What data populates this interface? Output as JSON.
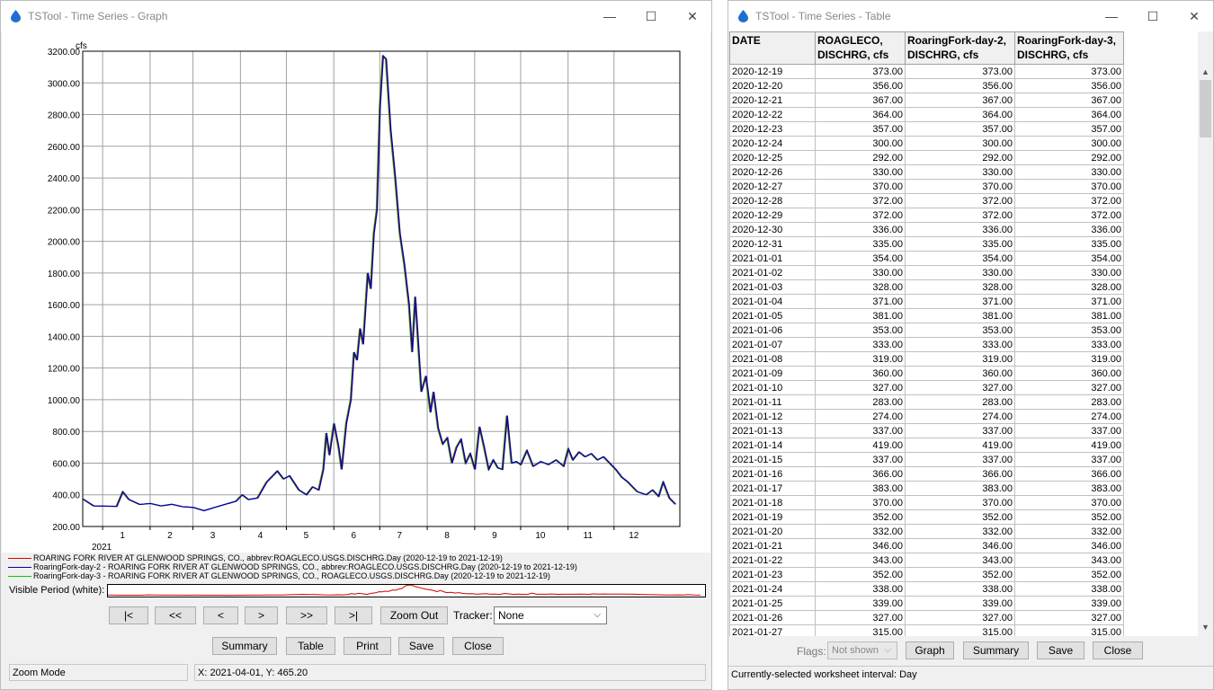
{
  "graph_window": {
    "title": "TSTool - Time Series - Graph",
    "controls": {
      "minimize": "—",
      "maximize": "☐",
      "close": "✕"
    },
    "chart": {
      "units_label": "cfs",
      "y_ticks": [
        "3200.00",
        "3000.00",
        "2800.00",
        "2600.00",
        "2400.00",
        "2200.00",
        "2000.00",
        "1800.00",
        "1600.00",
        "1400.00",
        "1200.00",
        "1000.00",
        "800.00",
        "600.00",
        "400.00",
        "200.00"
      ],
      "x_ticks": [
        "1",
        "2",
        "3",
        "4",
        "5",
        "6",
        "7",
        "8",
        "9",
        "10",
        "11",
        "12"
      ],
      "year_label": "2021"
    },
    "legend": [
      {
        "text": "ROARING FORK RIVER AT GLENWOOD SPRINGS, CO., abbrev:ROAGLECO.USGS.DISCHRG.Day (2020-12-19 to 2021-12-19)",
        "color": "#e00000"
      },
      {
        "text": "RoaringFork-day-2 - ROARING FORK RIVER AT GLENWOOD SPRINGS, CO., abbrev:ROAGLECO.USGS.DISCHRG.Day (2020-12-19 to 2021-12-19)",
        "color": "#0000b0"
      },
      {
        "text": "RoaringFork-day-3 - ROARING FORK RIVER AT GLENWOOD SPRINGS, CO., ROAGLECO.USGS.DISCHRG.Day (2020-12-19 to 2021-12-19)",
        "color": "#00cc00"
      }
    ],
    "visible_period_label": "Visible Period (white):",
    "nav_buttons": [
      "|<",
      "<<",
      "<",
      ">",
      ">>",
      ">|"
    ],
    "zoom_out": "Zoom Out",
    "tracker_label": "Tracker:",
    "tracker_value": "None",
    "action_buttons": [
      "Summary",
      "Table",
      "Print",
      "Save",
      "Close"
    ],
    "status_mode": "Zoom Mode",
    "status_coords": "X:  2021-04-01,  Y:  465.20"
  },
  "table_window": {
    "title": "TSTool - Time Series - Table",
    "controls": {
      "minimize": "—",
      "maximize": "☐",
      "close": "✕"
    },
    "columns": [
      {
        "line1": "DATE",
        "line2": ""
      },
      {
        "line1": "ROAGLECO,",
        "line2": "DISCHRG, cfs"
      },
      {
        "line1": "RoaringFork-day-2,",
        "line2": "DISCHRG, cfs"
      },
      {
        "line1": "RoaringFork-day-3,",
        "line2": "DISCHRG, cfs"
      }
    ],
    "rows": [
      [
        "2020-12-19",
        "373.00",
        "373.00",
        "373.00"
      ],
      [
        "2020-12-20",
        "356.00",
        "356.00",
        "356.00"
      ],
      [
        "2020-12-21",
        "367.00",
        "367.00",
        "367.00"
      ],
      [
        "2020-12-22",
        "364.00",
        "364.00",
        "364.00"
      ],
      [
        "2020-12-23",
        "357.00",
        "357.00",
        "357.00"
      ],
      [
        "2020-12-24",
        "300.00",
        "300.00",
        "300.00"
      ],
      [
        "2020-12-25",
        "292.00",
        "292.00",
        "292.00"
      ],
      [
        "2020-12-26",
        "330.00",
        "330.00",
        "330.00"
      ],
      [
        "2020-12-27",
        "370.00",
        "370.00",
        "370.00"
      ],
      [
        "2020-12-28",
        "372.00",
        "372.00",
        "372.00"
      ],
      [
        "2020-12-29",
        "372.00",
        "372.00",
        "372.00"
      ],
      [
        "2020-12-30",
        "336.00",
        "336.00",
        "336.00"
      ],
      [
        "2020-12-31",
        "335.00",
        "335.00",
        "335.00"
      ],
      [
        "2021-01-01",
        "354.00",
        "354.00",
        "354.00"
      ],
      [
        "2021-01-02",
        "330.00",
        "330.00",
        "330.00"
      ],
      [
        "2021-01-03",
        "328.00",
        "328.00",
        "328.00"
      ],
      [
        "2021-01-04",
        "371.00",
        "371.00",
        "371.00"
      ],
      [
        "2021-01-05",
        "381.00",
        "381.00",
        "381.00"
      ],
      [
        "2021-01-06",
        "353.00",
        "353.00",
        "353.00"
      ],
      [
        "2021-01-07",
        "333.00",
        "333.00",
        "333.00"
      ],
      [
        "2021-01-08",
        "319.00",
        "319.00",
        "319.00"
      ],
      [
        "2021-01-09",
        "360.00",
        "360.00",
        "360.00"
      ],
      [
        "2021-01-10",
        "327.00",
        "327.00",
        "327.00"
      ],
      [
        "2021-01-11",
        "283.00",
        "283.00",
        "283.00"
      ],
      [
        "2021-01-12",
        "274.00",
        "274.00",
        "274.00"
      ],
      [
        "2021-01-13",
        "337.00",
        "337.00",
        "337.00"
      ],
      [
        "2021-01-14",
        "419.00",
        "419.00",
        "419.00"
      ],
      [
        "2021-01-15",
        "337.00",
        "337.00",
        "337.00"
      ],
      [
        "2021-01-16",
        "366.00",
        "366.00",
        "366.00"
      ],
      [
        "2021-01-17",
        "383.00",
        "383.00",
        "383.00"
      ],
      [
        "2021-01-18",
        "370.00",
        "370.00",
        "370.00"
      ],
      [
        "2021-01-19",
        "352.00",
        "352.00",
        "352.00"
      ],
      [
        "2021-01-20",
        "332.00",
        "332.00",
        "332.00"
      ],
      [
        "2021-01-21",
        "346.00",
        "346.00",
        "346.00"
      ],
      [
        "2021-01-22",
        "343.00",
        "343.00",
        "343.00"
      ],
      [
        "2021-01-23",
        "352.00",
        "352.00",
        "352.00"
      ],
      [
        "2021-01-24",
        "338.00",
        "338.00",
        "338.00"
      ],
      [
        "2021-01-25",
        "339.00",
        "339.00",
        "339.00"
      ],
      [
        "2021-01-26",
        "327.00",
        "327.00",
        "327.00"
      ],
      [
        "2021-01-27",
        "315.00",
        "315.00",
        "315.00"
      ]
    ],
    "flags_label": "Flags:",
    "flags_value": "Not shown",
    "buttons": [
      "Graph",
      "Summary",
      "Save",
      "Close"
    ],
    "status": "Currently-selected worksheet interval: Day"
  },
  "chart_data": {
    "type": "line",
    "xlabel": "",
    "ylabel": "cfs",
    "ylim": [
      200,
      3200
    ],
    "x_tick_labels": [
      "1",
      "2",
      "3",
      "4",
      "5",
      "6",
      "7",
      "8",
      "9",
      "10",
      "11",
      "12"
    ],
    "x_start": "2020-12-19",
    "x_end": "2021-12-19",
    "series": [
      {
        "name": "ROARING FORK RIVER AT GLENWOOD SPRINGS, CO., abbrev:ROAGLECO.USGS.DISCHRG.Day (2020-12-19 to 2021-12-19)",
        "color": "#e00000"
      },
      {
        "name": "RoaringFork-day-2 - ROARING FORK RIVER AT GLENWOOD SPRINGS, CO., abbrev:ROAGLECO.USGS.DISCHRG.Day (2020-12-19 to 2021-12-19)",
        "color": "#0000b0"
      },
      {
        "name": "RoaringFork-day-3 - ROARING FORK RIVER AT GLENWOOD SPRINGS, CO., ROAGLECO.USGS.DISCHRG.Day (2020-12-19 to 2021-12-19)",
        "color": "#00cc00"
      }
    ],
    "points": [
      [
        "2020-12-19",
        373
      ],
      [
        "2020-12-26",
        330
      ],
      [
        "2021-01-03",
        328
      ],
      [
        "2021-01-10",
        327
      ],
      [
        "2021-01-14",
        419
      ],
      [
        "2021-01-18",
        370
      ],
      [
        "2021-01-25",
        339
      ],
      [
        "2021-02-01",
        345
      ],
      [
        "2021-02-08",
        330
      ],
      [
        "2021-02-15",
        340
      ],
      [
        "2021-02-22",
        325
      ],
      [
        "2021-03-01",
        320
      ],
      [
        "2021-03-08",
        300
      ],
      [
        "2021-03-15",
        320
      ],
      [
        "2021-03-22",
        340
      ],
      [
        "2021-03-29",
        360
      ],
      [
        "2021-04-02",
        400
      ],
      [
        "2021-04-06",
        370
      ],
      [
        "2021-04-12",
        380
      ],
      [
        "2021-04-18",
        480
      ],
      [
        "2021-04-25",
        550
      ],
      [
        "2021-04-29",
        500
      ],
      [
        "2021-05-03",
        520
      ],
      [
        "2021-05-09",
        430
      ],
      [
        "2021-05-14",
        400
      ],
      [
        "2021-05-18",
        450
      ],
      [
        "2021-05-22",
        430
      ],
      [
        "2021-05-25",
        560
      ],
      [
        "2021-05-27",
        790
      ],
      [
        "2021-05-29",
        650
      ],
      [
        "2021-06-01",
        850
      ],
      [
        "2021-06-04",
        700
      ],
      [
        "2021-06-06",
        560
      ],
      [
        "2021-06-09",
        850
      ],
      [
        "2021-06-12",
        1000
      ],
      [
        "2021-06-14",
        1300
      ],
      [
        "2021-06-16",
        1250
      ],
      [
        "2021-06-18",
        1450
      ],
      [
        "2021-06-20",
        1350
      ],
      [
        "2021-06-23",
        1800
      ],
      [
        "2021-06-25",
        1700
      ],
      [
        "2021-06-27",
        2050
      ],
      [
        "2021-06-29",
        2200
      ],
      [
        "2021-07-01",
        2850
      ],
      [
        "2021-07-03",
        3170
      ],
      [
        "2021-07-05",
        3150
      ],
      [
        "2021-07-06",
        3000
      ],
      [
        "2021-07-08",
        2700
      ],
      [
        "2021-07-11",
        2400
      ],
      [
        "2021-07-14",
        2050
      ],
      [
        "2021-07-17",
        1850
      ],
      [
        "2021-07-20",
        1600
      ],
      [
        "2021-07-22",
        1300
      ],
      [
        "2021-07-24",
        1650
      ],
      [
        "2021-07-26",
        1350
      ],
      [
        "2021-07-28",
        1050
      ],
      [
        "2021-07-31",
        1150
      ],
      [
        "2021-08-03",
        920
      ],
      [
        "2021-08-05",
        1050
      ],
      [
        "2021-08-08",
        820
      ],
      [
        "2021-08-11",
        720
      ],
      [
        "2021-08-14",
        760
      ],
      [
        "2021-08-17",
        600
      ],
      [
        "2021-08-20",
        700
      ],
      [
        "2021-08-23",
        750
      ],
      [
        "2021-08-26",
        600
      ],
      [
        "2021-08-29",
        660
      ],
      [
        "2021-09-01",
        560
      ],
      [
        "2021-09-04",
        830
      ],
      [
        "2021-09-07",
        700
      ],
      [
        "2021-09-10",
        560
      ],
      [
        "2021-09-13",
        620
      ],
      [
        "2021-09-16",
        570
      ],
      [
        "2021-09-19",
        560
      ],
      [
        "2021-09-22",
        900
      ],
      [
        "2021-09-25",
        600
      ],
      [
        "2021-09-28",
        610
      ],
      [
        "2021-10-01",
        590
      ],
      [
        "2021-10-05",
        680
      ],
      [
        "2021-10-09",
        580
      ],
      [
        "2021-10-14",
        610
      ],
      [
        "2021-10-19",
        590
      ],
      [
        "2021-10-24",
        620
      ],
      [
        "2021-10-29",
        580
      ],
      [
        "2021-11-01",
        690
      ],
      [
        "2021-11-04",
        620
      ],
      [
        "2021-11-08",
        670
      ],
      [
        "2021-11-12",
        640
      ],
      [
        "2021-11-16",
        660
      ],
      [
        "2021-11-20",
        620
      ],
      [
        "2021-11-24",
        640
      ],
      [
        "2021-11-28",
        600
      ],
      [
        "2021-12-02",
        560
      ],
      [
        "2021-12-06",
        510
      ],
      [
        "2021-12-10",
        480
      ],
      [
        "2021-12-13",
        450
      ],
      [
        "2021-12-16",
        420
      ],
      [
        "2021-12-19",
        410
      ],
      [
        "2021-12-22",
        400
      ],
      [
        "2021-12-26",
        430
      ],
      [
        "2021-12-30",
        390
      ],
      [
        "2022-01-02",
        480
      ],
      [
        "2022-01-06",
        380
      ],
      [
        "2022-01-10",
        340
      ]
    ]
  }
}
